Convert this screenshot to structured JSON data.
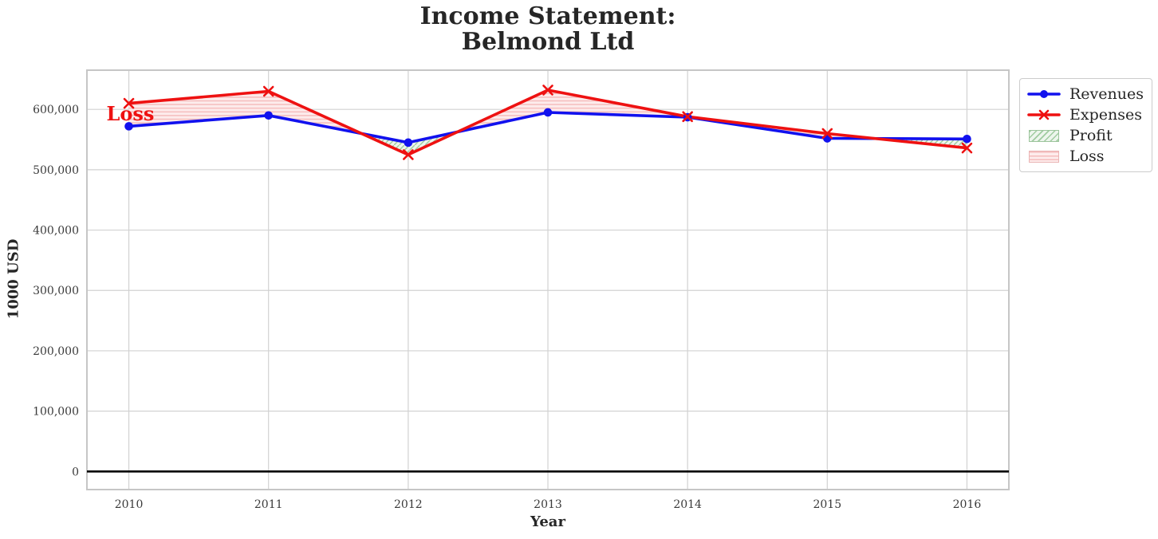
{
  "chart_data": {
    "type": "line",
    "title": "Income Statement:\nBelmond Ltd",
    "xlabel": "Year",
    "ylabel": "1000 USD",
    "x": [
      2010,
      2011,
      2012,
      2013,
      2014,
      2015,
      2016
    ],
    "x_tick_labels": [
      "2010",
      "2011",
      "2012",
      "2013",
      "2014",
      "2015",
      "2016"
    ],
    "series": [
      {
        "name": "Revenues",
        "color": "#1111ee",
        "marker": "circle",
        "values": [
          572000,
          590000,
          545000,
          595000,
          587000,
          552000,
          551000
        ]
      },
      {
        "name": "Expenses",
        "color": "#ee1111",
        "marker": "x",
        "values": [
          610000,
          630000,
          525000,
          632000,
          588000,
          560000,
          536000
        ]
      }
    ],
    "fills": [
      {
        "name": "Profit",
        "condition": "revenues above expenses",
        "face": "#edf5ed",
        "hatch_color": "#a0cba0",
        "hatch": "diagonal"
      },
      {
        "name": "Loss",
        "condition": "expenses above revenues",
        "face": "#fdecec",
        "hatch_color": "#f5bdbd",
        "hatch": "horizontal"
      }
    ],
    "y_ticks": [
      {
        "value": 0,
        "label": "0"
      },
      {
        "value": 100000,
        "label": "100,000"
      },
      {
        "value": 200000,
        "label": "200,000"
      },
      {
        "value": 300000,
        "label": "300,000"
      },
      {
        "value": 400000,
        "label": "400,000"
      },
      {
        "value": 500000,
        "label": "500,000"
      },
      {
        "value": 600000,
        "label": "600,000"
      }
    ],
    "xlim": [
      2009.7,
      2016.3
    ],
    "ylim": [
      -30000,
      665000
    ],
    "grid": true,
    "grid_color": "#d2d2d2",
    "border_color": "#c6c6c6",
    "zero_line_color": "#000000",
    "tick_color": "#3a3a3a",
    "text_color": "#262626",
    "legend_position": "outside top-right",
    "annotation": {
      "text": "Loss",
      "color": "#ee1111",
      "x": 2009.84,
      "y": 592000
    }
  }
}
